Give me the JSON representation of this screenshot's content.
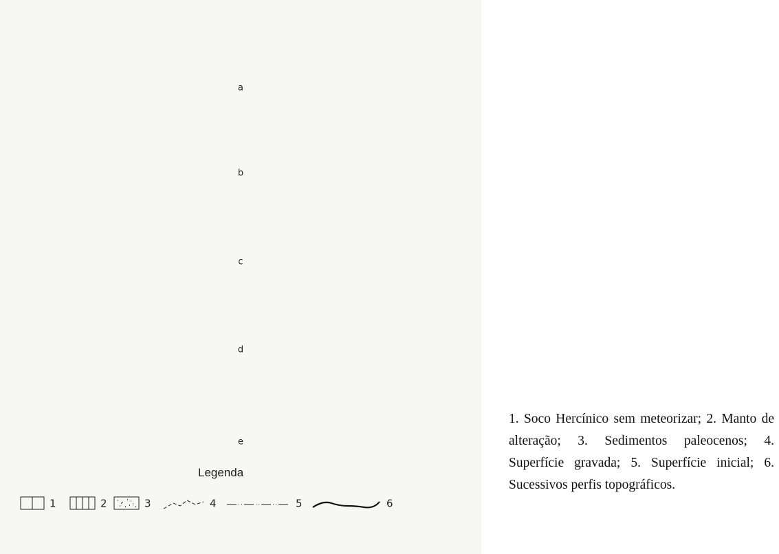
{
  "figure": {
    "panels": [
      "a",
      "b",
      "c",
      "d",
      "e"
    ],
    "legend": {
      "title": "Legenda",
      "items": [
        "1",
        "2",
        "3",
        "4",
        "5",
        "6"
      ]
    },
    "caption": "1. Soco Hercínico sem meteorizar; 2. Manto de alteração; 3. Sedimentos paleocenos; 4. Superfície gravada; 5. Superfície inicial; 6. Sucessivos perfis topográficos."
  }
}
